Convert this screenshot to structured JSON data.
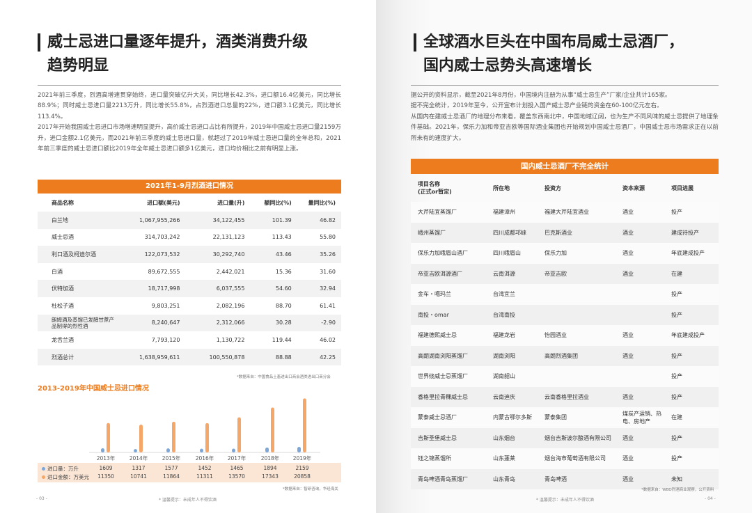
{
  "left": {
    "heading": [
      "威士忌进口量逐年提升，酒类消费升级",
      "趋势明显"
    ],
    "paragraphs": [
      "2021年前三季度，烈酒高增速贯穿始终，进口量突破亿升大关，同比增长42.3%，进口额16.4亿美元，同比增长88.9%；同时威士忌进口量2213万升，同比增长55.8%，占烈酒进口总量的22%，进口额3.1亿美元，同比增长113.4%。",
      "2017年开始我国威士忌进口市场增速明显提升，高价威士忌进口占比有所提升，2019年中国威士忌进口量2159万升，进口金额2.1亿美元，而2021年前三季度的威士忌进口量，就超过了2019年威士忌进口量的全年总和，2021年前三季度的威士忌进口额比2019年全年威士忌进口额多1亿美元，进口均价相比之前有明显上涨。"
    ],
    "table": {
      "title": "2021年1-9月烈酒进口情况",
      "headers": [
        "商品名称",
        "进口额(美元)",
        "进口量(升)",
        "额同比(%)",
        "量同比(%)"
      ],
      "rows": [
        [
          "白兰地",
          "1,067,955,266",
          "34,122,455",
          "101.39",
          "46.82"
        ],
        [
          "威士忌酒",
          "314,703,242",
          "22,131,123",
          "113.43",
          "55.80"
        ],
        [
          "利口酒及柯迪尔酒",
          "122,073,532",
          "30,292,740",
          "43.46",
          "35.26"
        ],
        [
          "白酒",
          "89,672,555",
          "2,442,021",
          "15.36",
          "31.60"
        ],
        [
          "伏特加酒",
          "18,717,998",
          "6,037,555",
          "54.60",
          "32.94"
        ],
        [
          "杜松子酒",
          "9,803,251",
          "2,082,196",
          "88.70",
          "61.41"
        ],
        [
          "朗姆酒及蒸馏已发酵甘蔗产品制得的烈性酒",
          "8,240,647",
          "2,312,066",
          "30.28",
          "-2.90"
        ],
        [
          "龙舌兰酒",
          "7,793,120",
          "1,130,722",
          "119.44",
          "46.02"
        ],
        [
          "烈酒总计",
          "1,638,959,611",
          "100,550,878",
          "88.88",
          "42.25"
        ]
      ],
      "source": "*数据来自：中国食品土畜进出口商会酒类进出口商分会"
    },
    "chart_source": "*数据来自：智研咨询，华经海关",
    "page_number": "- 03 -",
    "footer_note": "* 温馨提示：未成年人不得饮酒"
  },
  "chart_data": {
    "type": "bar",
    "title": "2013-2019年中国威士忌进口情况",
    "categories": [
      "2013年",
      "2014年",
      "2015年",
      "2016年",
      "2017年",
      "2018年",
      "2019年"
    ],
    "series": [
      {
        "name": "进口量：万升",
        "values": [
          1609,
          1317,
          1577,
          1452,
          1465,
          1894,
          2159
        ],
        "color": "#7da7d9"
      },
      {
        "name": "进口金额：万美元",
        "values": [
          11350,
          10741,
          11864,
          11311,
          13570,
          17343,
          20858
        ],
        "color": "#f5a76a"
      }
    ],
    "ylim": [
      0,
      21500
    ]
  },
  "right": {
    "heading": [
      "全球酒水巨头在中国布局威士忌酒厂，",
      "国内威士忌势头高速增长"
    ],
    "paragraphs": [
      "据公开的资料显示，截至2021年8月份，中国境内注册为从事“威士忌生产”厂家/企业共计165家。",
      "据不完全统计，2019年至今，公开宣布计划投入国产威士忌产业链的资金在60-100亿元左右。",
      "从国内在建威士忌酒厂的地理分布来看，覆盖东西南北中，中国地域辽阔，也为生产不同风味的威士忌提供了地理条件基础。2021年，保乐力加和帝亚吉欧等国际酒业集团也开始规划中国威士忌酒厂，中国威士忌市场需求正在以前所未有的速度扩大。"
    ],
    "table": {
      "title": "国内威士忌酒厂不完全统计",
      "headers": [
        "项目名称\n(正式or暂定)",
        "所在地",
        "投资方",
        "资本来源",
        "项目进展"
      ],
      "rows": [
        [
          "大芹陆宜蒸馏厂",
          "福建漳州",
          "福建大芹陆宜酒业",
          "酒业",
          "投产"
        ],
        [
          "峨州蒸馏厂",
          "四川成都邛崃",
          "巴克斯酒业",
          "酒业",
          "建成待投产"
        ],
        [
          "保乐力加峨眉山酒厂",
          "四川峨眉山",
          "保乐力加",
          "酒业",
          "年底建成投产"
        ],
        [
          "帝亚吉欧洱源酒厂",
          "云南洱源",
          "帝亚吉欧",
          "酒业",
          "在建"
        ],
        [
          "金车・噶玛兰",
          "台湾宜兰",
          "",
          "",
          "投产"
        ],
        [
          "南投・omar",
          "台湾南投",
          "",
          "",
          "投产"
        ],
        [
          "福建德熙威士忌",
          "福建龙岩",
          "怡园酒业",
          "酒业",
          "年底建成投产"
        ],
        [
          "高朗湖南浏阳蒸馏厂",
          "湖南浏阳",
          "高朗烈酒集团",
          "酒业",
          "投产"
        ],
        [
          "世界绕威士忌蒸馏厂",
          "湖南韶山",
          "",
          "",
          "投产"
        ],
        [
          "香格里拉青稞威士忌",
          "云南迪庆",
          "云南香格里拉酒业",
          "酒业",
          "投产"
        ],
        [
          "蒙泰威士忌酒厂",
          "内蒙古鄂尔多斯",
          "蒙泰集团",
          "煤炭产运销、热电、房地产",
          "在建"
        ],
        [
          "吉斯圣堡威士忌",
          "山东烟台",
          "烟台吉斯波尔酿酒有限公司",
          "酒业",
          "投产"
        ],
        [
          "钰之锦蒸馏所",
          "山东蓬莱",
          "烟台海市葡萄酒有限公司",
          "酒业",
          "投产"
        ],
        [
          "青岛啤酒青岛蒸馏厂",
          "山东青岛",
          "青岛啤酒",
          "酒业",
          "未知"
        ]
      ],
      "source": "*数据来自：WBO烈酒商业观察，公开资料"
    },
    "page_number": "- 04 -",
    "footer_note": "* 温馨提示：未成年人不得饮酒"
  }
}
